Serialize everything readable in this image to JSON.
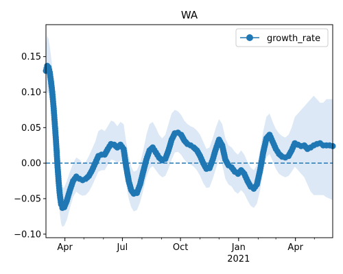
{
  "chart_data": {
    "type": "line",
    "title": "WA",
    "xlabel": "",
    "ylabel": "",
    "x_range": [
      "2020-03-02",
      "2021-05-30"
    ],
    "ylim": [
      -0.105,
      0.195
    ],
    "grid": false,
    "legend": {
      "placement": "top-right",
      "entries": [
        "growth_rate"
      ]
    },
    "reference_line": {
      "y": 0.0,
      "style": "dashed"
    },
    "colors": {
      "series": "#1f77b4",
      "band": "#dce8f5"
    },
    "x_ticks": [
      {
        "date": "2020-04-01",
        "label": "Apr",
        "sublabel": ""
      },
      {
        "date": "2020-07-01",
        "label": "Jul",
        "sublabel": ""
      },
      {
        "date": "2020-10-01",
        "label": "Oct",
        "sublabel": ""
      },
      {
        "date": "2021-01-01",
        "label": "Jan",
        "sublabel": "2021"
      },
      {
        "date": "2021-04-01",
        "label": "Apr",
        "sublabel": ""
      }
    ],
    "y_ticks": [
      {
        "value": -0.1,
        "label": "−0.10"
      },
      {
        "value": -0.05,
        "label": "−0.05"
      },
      {
        "value": 0.0,
        "label": "0.00"
      },
      {
        "value": 0.05,
        "label": "0.05"
      },
      {
        "value": 0.1,
        "label": "0.10"
      },
      {
        "value": 0.15,
        "label": "0.15"
      }
    ],
    "series": [
      {
        "name": "growth_rate",
        "marker": "circle",
        "band": "confidence interval",
        "points": [
          {
            "x": "2020-03-02",
            "y": 0.13,
            "lo": 0.095,
            "hi": 0.165
          },
          {
            "x": "2020-03-04",
            "y": 0.137,
            "lo": 0.1,
            "hi": 0.18
          },
          {
            "x": "2020-03-06",
            "y": 0.135,
            "lo": 0.098,
            "hi": 0.175
          },
          {
            "x": "2020-03-08",
            "y": 0.128,
            "lo": 0.09,
            "hi": 0.165
          },
          {
            "x": "2020-03-10",
            "y": 0.115,
            "lo": 0.08,
            "hi": 0.15
          },
          {
            "x": "2020-03-12",
            "y": 0.1,
            "lo": 0.068,
            "hi": 0.135
          },
          {
            "x": "2020-03-14",
            "y": 0.08,
            "lo": 0.05,
            "hi": 0.115
          },
          {
            "x": "2020-03-16",
            "y": 0.055,
            "lo": 0.028,
            "hi": 0.09
          },
          {
            "x": "2020-03-18",
            "y": 0.03,
            "lo": 0.005,
            "hi": 0.065
          },
          {
            "x": "2020-03-20",
            "y": 0.0,
            "lo": -0.025,
            "hi": 0.035
          },
          {
            "x": "2020-03-22",
            "y": -0.025,
            "lo": -0.05,
            "hi": 0.008
          },
          {
            "x": "2020-03-24",
            "y": -0.045,
            "lo": -0.072,
            "hi": -0.012
          },
          {
            "x": "2020-03-26",
            "y": -0.058,
            "lo": -0.085,
            "hi": -0.028
          },
          {
            "x": "2020-03-28",
            "y": -0.063,
            "lo": -0.09,
            "hi": -0.035
          },
          {
            "x": "2020-03-31",
            "y": -0.062,
            "lo": -0.088,
            "hi": -0.034
          },
          {
            "x": "2020-04-04",
            "y": -0.053,
            "lo": -0.08,
            "hi": -0.025
          },
          {
            "x": "2020-04-09",
            "y": -0.038,
            "lo": -0.063,
            "hi": -0.012
          },
          {
            "x": "2020-04-14",
            "y": -0.025,
            "lo": -0.048,
            "hi": 0.0
          },
          {
            "x": "2020-04-19",
            "y": -0.019,
            "lo": -0.04,
            "hi": 0.008
          },
          {
            "x": "2020-04-24",
            "y": -0.022,
            "lo": -0.044,
            "hi": 0.005
          },
          {
            "x": "2020-04-29",
            "y": -0.024,
            "lo": -0.046,
            "hi": 0.0
          },
          {
            "x": "2020-05-04",
            "y": -0.022,
            "lo": -0.045,
            "hi": 0.002
          },
          {
            "x": "2020-05-09",
            "y": -0.018,
            "lo": -0.04,
            "hi": 0.01
          },
          {
            "x": "2020-05-14",
            "y": -0.01,
            "lo": -0.032,
            "hi": 0.02
          },
          {
            "x": "2020-05-19",
            "y": 0.0,
            "lo": -0.022,
            "hi": 0.03
          },
          {
            "x": "2020-05-24",
            "y": 0.01,
            "lo": -0.012,
            "hi": 0.045
          },
          {
            "x": "2020-05-29",
            "y": 0.012,
            "lo": -0.01,
            "hi": 0.048
          },
          {
            "x": "2020-06-03",
            "y": 0.012,
            "lo": -0.01,
            "hi": 0.045
          },
          {
            "x": "2020-06-08",
            "y": 0.02,
            "lo": -0.002,
            "hi": 0.052
          },
          {
            "x": "2020-06-13",
            "y": 0.027,
            "lo": 0.005,
            "hi": 0.06
          },
          {
            "x": "2020-06-18",
            "y": 0.026,
            "lo": 0.004,
            "hi": 0.058
          },
          {
            "x": "2020-06-23",
            "y": 0.022,
            "lo": 0.0,
            "hi": 0.052
          },
          {
            "x": "2020-06-28",
            "y": 0.026,
            "lo": 0.004,
            "hi": 0.058
          },
          {
            "x": "2020-07-03",
            "y": 0.02,
            "lo": -0.002,
            "hi": 0.055
          },
          {
            "x": "2020-07-07",
            "y": -0.005,
            "lo": -0.03,
            "hi": 0.03
          },
          {
            "x": "2020-07-11",
            "y": -0.025,
            "lo": -0.05,
            "hi": 0.01
          },
          {
            "x": "2020-07-15",
            "y": -0.038,
            "lo": -0.062,
            "hi": -0.005
          },
          {
            "x": "2020-07-19",
            "y": -0.043,
            "lo": -0.068,
            "hi": -0.012
          },
          {
            "x": "2020-07-24",
            "y": -0.042,
            "lo": -0.066,
            "hi": -0.01
          },
          {
            "x": "2020-07-29",
            "y": -0.03,
            "lo": -0.055,
            "hi": 0.0
          },
          {
            "x": "2020-08-03",
            "y": -0.012,
            "lo": -0.038,
            "hi": 0.018
          },
          {
            "x": "2020-08-08",
            "y": 0.005,
            "lo": -0.02,
            "hi": 0.04
          },
          {
            "x": "2020-08-13",
            "y": 0.018,
            "lo": -0.008,
            "hi": 0.055
          },
          {
            "x": "2020-08-18",
            "y": 0.022,
            "lo": -0.004,
            "hi": 0.058
          },
          {
            "x": "2020-08-23",
            "y": 0.015,
            "lo": -0.01,
            "hi": 0.05
          },
          {
            "x": "2020-08-28",
            "y": 0.008,
            "lo": -0.016,
            "hi": 0.04
          },
          {
            "x": "2020-09-02",
            "y": 0.004,
            "lo": -0.02,
            "hi": 0.035
          },
          {
            "x": "2020-09-07",
            "y": 0.006,
            "lo": -0.018,
            "hi": 0.04
          },
          {
            "x": "2020-09-12",
            "y": 0.018,
            "lo": -0.008,
            "hi": 0.055
          },
          {
            "x": "2020-09-17",
            "y": 0.033,
            "lo": 0.005,
            "hi": 0.07
          },
          {
            "x": "2020-09-22",
            "y": 0.042,
            "lo": 0.015,
            "hi": 0.075
          },
          {
            "x": "2020-09-27",
            "y": 0.043,
            "lo": 0.016,
            "hi": 0.073
          },
          {
            "x": "2020-10-02",
            "y": 0.04,
            "lo": 0.012,
            "hi": 0.068
          },
          {
            "x": "2020-10-07",
            "y": 0.032,
            "lo": 0.005,
            "hi": 0.06
          },
          {
            "x": "2020-10-12",
            "y": 0.027,
            "lo": 0.0,
            "hi": 0.055
          },
          {
            "x": "2020-10-17",
            "y": 0.025,
            "lo": -0.002,
            "hi": 0.052
          },
          {
            "x": "2020-10-22",
            "y": 0.022,
            "lo": -0.005,
            "hi": 0.05
          },
          {
            "x": "2020-10-27",
            "y": 0.018,
            "lo": -0.01,
            "hi": 0.046
          },
          {
            "x": "2020-11-01",
            "y": 0.01,
            "lo": -0.018,
            "hi": 0.04
          },
          {
            "x": "2020-11-06",
            "y": 0.0,
            "lo": -0.028,
            "hi": 0.03
          },
          {
            "x": "2020-11-11",
            "y": -0.008,
            "lo": -0.035,
            "hi": 0.02
          },
          {
            "x": "2020-11-16",
            "y": -0.007,
            "lo": -0.034,
            "hi": 0.022
          },
          {
            "x": "2020-11-21",
            "y": 0.005,
            "lo": -0.022,
            "hi": 0.035
          },
          {
            "x": "2020-11-26",
            "y": 0.02,
            "lo": -0.008,
            "hi": 0.05
          },
          {
            "x": "2020-12-01",
            "y": 0.033,
            "lo": 0.005,
            "hi": 0.062
          },
          {
            "x": "2020-12-06",
            "y": 0.025,
            "lo": -0.002,
            "hi": 0.055
          },
          {
            "x": "2020-12-11",
            "y": 0.005,
            "lo": -0.022,
            "hi": 0.035
          },
          {
            "x": "2020-12-16",
            "y": -0.003,
            "lo": -0.03,
            "hi": 0.025
          },
          {
            "x": "2020-12-21",
            "y": -0.006,
            "lo": -0.033,
            "hi": 0.022
          },
          {
            "x": "2020-12-26",
            "y": -0.012,
            "lo": -0.04,
            "hi": 0.016
          },
          {
            "x": "2020-12-31",
            "y": -0.015,
            "lo": -0.043,
            "hi": 0.012
          },
          {
            "x": "2021-01-05",
            "y": -0.01,
            "lo": -0.038,
            "hi": 0.018
          },
          {
            "x": "2021-01-10",
            "y": -0.015,
            "lo": -0.043,
            "hi": 0.012
          },
          {
            "x": "2021-01-15",
            "y": -0.025,
            "lo": -0.052,
            "hi": 0.002
          },
          {
            "x": "2021-01-20",
            "y": -0.033,
            "lo": -0.06,
            "hi": -0.006
          },
          {
            "x": "2021-01-25",
            "y": -0.036,
            "lo": -0.063,
            "hi": -0.01
          },
          {
            "x": "2021-01-30",
            "y": -0.03,
            "lo": -0.057,
            "hi": -0.003
          },
          {
            "x": "2021-02-04",
            "y": -0.01,
            "lo": -0.038,
            "hi": 0.018
          },
          {
            "x": "2021-02-09",
            "y": 0.015,
            "lo": -0.012,
            "hi": 0.045
          },
          {
            "x": "2021-02-14",
            "y": 0.035,
            "lo": 0.008,
            "hi": 0.065
          },
          {
            "x": "2021-02-19",
            "y": 0.04,
            "lo": 0.013,
            "hi": 0.07
          },
          {
            "x": "2021-02-24",
            "y": 0.03,
            "lo": 0.003,
            "hi": 0.058
          },
          {
            "x": "2021-03-01",
            "y": 0.02,
            "lo": -0.008,
            "hi": 0.048
          },
          {
            "x": "2021-03-06",
            "y": 0.013,
            "lo": -0.015,
            "hi": 0.042
          },
          {
            "x": "2021-03-11",
            "y": 0.009,
            "lo": -0.018,
            "hi": 0.038
          },
          {
            "x": "2021-03-16",
            "y": 0.008,
            "lo": -0.02,
            "hi": 0.036
          },
          {
            "x": "2021-03-21",
            "y": 0.01,
            "lo": -0.018,
            "hi": 0.04
          },
          {
            "x": "2021-03-26",
            "y": 0.018,
            "lo": -0.012,
            "hi": 0.05
          },
          {
            "x": "2021-03-31",
            "y": 0.028,
            "lo": -0.005,
            "hi": 0.065
          },
          {
            "x": "2021-04-05",
            "y": 0.026,
            "lo": -0.01,
            "hi": 0.07
          },
          {
            "x": "2021-04-10",
            "y": 0.024,
            "lo": -0.015,
            "hi": 0.075
          },
          {
            "x": "2021-04-15",
            "y": 0.025,
            "lo": -0.02,
            "hi": 0.08
          },
          {
            "x": "2021-04-20",
            "y": 0.02,
            "lo": -0.03,
            "hi": 0.085
          },
          {
            "x": "2021-04-25",
            "y": 0.022,
            "lo": -0.04,
            "hi": 0.09
          },
          {
            "x": "2021-04-30",
            "y": 0.025,
            "lo": -0.045,
            "hi": 0.095
          },
          {
            "x": "2021-05-05",
            "y": 0.027,
            "lo": -0.045,
            "hi": 0.09
          },
          {
            "x": "2021-05-10",
            "y": 0.028,
            "lo": -0.045,
            "hi": 0.085
          },
          {
            "x": "2021-05-15",
            "y": 0.025,
            "lo": -0.045,
            "hi": 0.085
          },
          {
            "x": "2021-05-20",
            "y": 0.025,
            "lo": -0.048,
            "hi": 0.09
          },
          {
            "x": "2021-05-25",
            "y": 0.025,
            "lo": -0.05,
            "hi": 0.09
          },
          {
            "x": "2021-05-30",
            "y": 0.024,
            "lo": -0.052,
            "hi": 0.09
          }
        ]
      }
    ]
  }
}
